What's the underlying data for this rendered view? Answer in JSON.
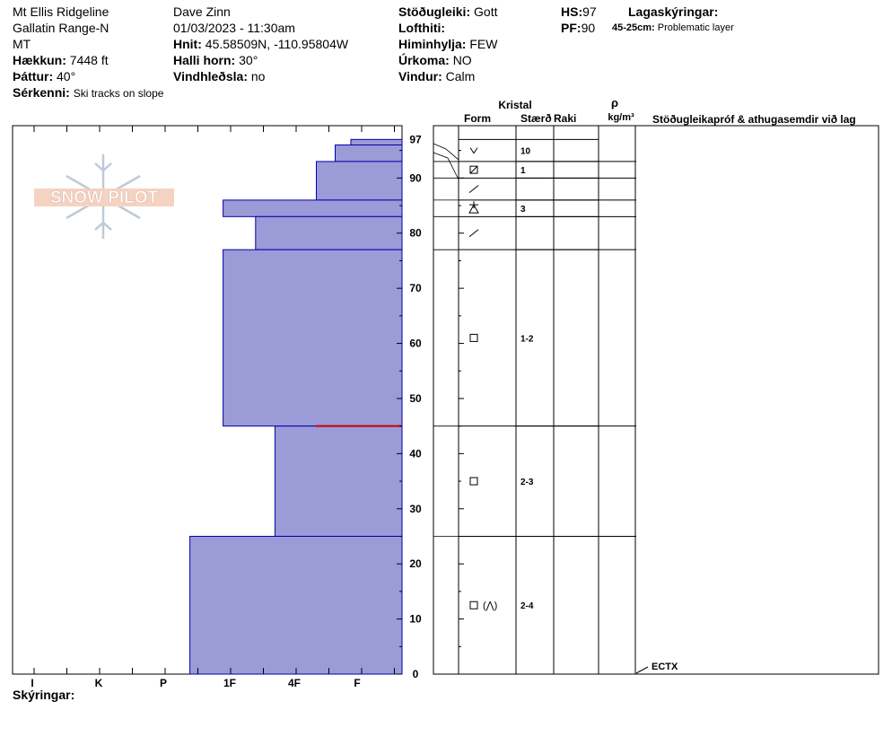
{
  "header": {
    "location": "Mt Ellis Ridgeline",
    "range": "Gallatin Range-N",
    "state": "MT",
    "elevation_label": "Hækkun:",
    "elevation_value": "7448 ft",
    "aspect_label": "Þáttur:",
    "aspect_value": "40°",
    "observer": "Dave Zinn",
    "datetime": "01/03/2023 - 11:30am",
    "coords_label": "Hnit:",
    "coords_value": "45.58509N, -110.95804W",
    "slope_label": "Halli horn:",
    "slope_value": "30°",
    "wind_loading_label": "Vindhleðsla:",
    "wind_loading_value": "no",
    "stability_label": "Stöðugleiki:",
    "stability_value": "Gott",
    "air_temp_label": "Lofthiti:",
    "sky_label": "Himinhylja:",
    "sky_value": "FEW",
    "precip_label": "Úrkoma:",
    "precip_value": "NO",
    "wind_label": "Vindur:",
    "wind_value": "Calm",
    "hs_label": "HS:",
    "hs_value": "97",
    "pf_label": "PF:",
    "pf_value": "90",
    "layer_notes_label": "Lagaskýringar:",
    "layer_note_range": "45-25cm:",
    "layer_note_text": "Problematic layer",
    "features_label": "Sérkenni:",
    "features_value": "Ski tracks on slope"
  },
  "logo": {
    "text": "SNOW PILOT"
  },
  "columns": {
    "crystal": "Kristal",
    "form": "Form",
    "size": "Stærð",
    "moisture": "Raki",
    "density_symbol": "ρ",
    "density_unit": "kg/m³",
    "tests": "Stöðugleikapróf & athugasemdir við lag"
  },
  "legend_label": "Skýringar:",
  "colors": {
    "hardness_fill": "#9b9bd7",
    "hardness_stroke": "#0000aa",
    "problem_line": "#cc0000",
    "frame": "#000000"
  },
  "chart_data": {
    "type": "bar",
    "orientation": "horizontal-step",
    "hardness_scale": [
      "I",
      "K",
      "P",
      "1F",
      "4F",
      "F"
    ],
    "depth_range_cm": [
      0,
      97
    ],
    "depth_ticks": [
      0,
      10,
      20,
      30,
      40,
      50,
      60,
      70,
      80,
      90,
      97
    ],
    "layers": [
      {
        "top": 97,
        "bottom": 96,
        "hardness": 0.1,
        "form": "v-icon",
        "size": ""
      },
      {
        "top": 96,
        "bottom": 93,
        "hardness": 0.35,
        "form": "v-icon",
        "size": "10"
      },
      {
        "top": 93,
        "bottom": 86,
        "hardness": 0.65,
        "form": "boxed-slash-icon",
        "size": "1"
      },
      {
        "top": 86,
        "bottom": 83,
        "hardness": 2.1,
        "form": "slash-icon",
        "size": ""
      },
      {
        "top": 83,
        "bottom": 77,
        "hardness": 1.6,
        "form": "star-triangle-icon",
        "size": "3"
      },
      {
        "top": 77,
        "bottom": 45,
        "hardness": 2.1,
        "form": "square-icon",
        "size": "1-2"
      },
      {
        "top": 45,
        "bottom": 25,
        "hardness": 1.3,
        "form": "square-icon",
        "size": "2-3"
      },
      {
        "top": 25,
        "bottom": 0,
        "hardness": 2.6,
        "form": "square-wedge-icon",
        "size": "2-4"
      }
    ],
    "form_rows": [
      {
        "top": 97,
        "bottom": 93,
        "form": "v-icon",
        "size": "10",
        "label": ""
      },
      {
        "top": 93,
        "bottom": 90,
        "form": "boxed-slash-icon",
        "size": "1",
        "label": ""
      },
      {
        "top": 90,
        "bottom": 86,
        "form": "slash-icon",
        "size": "",
        "label": ""
      },
      {
        "top": 86,
        "bottom": 83,
        "form": "star-triangle-icon",
        "size": "3",
        "label": ""
      },
      {
        "top": 83,
        "bottom": 77,
        "form": "slash-icon",
        "size": "",
        "label": ""
      },
      {
        "top": 77,
        "bottom": 45,
        "form": "square-icon",
        "size": "1-2",
        "label": ""
      },
      {
        "top": 45,
        "bottom": 25,
        "form": "square-icon",
        "size": "2-3",
        "label": ""
      },
      {
        "top": 25,
        "bottom": 0,
        "form": "square-wedge-icon",
        "size": "2-4",
        "label": "(⋀)"
      }
    ],
    "problem_layer_depth": 45,
    "tests": [
      {
        "depth": 0,
        "label": "ECTX"
      }
    ]
  }
}
